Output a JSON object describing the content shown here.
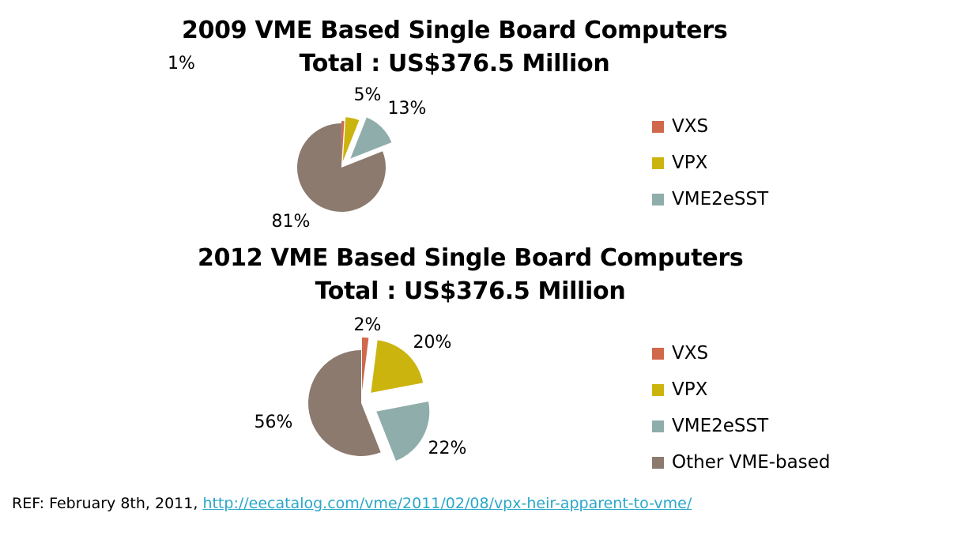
{
  "chart_data": [
    {
      "type": "pie",
      "title": "2009 VME Based Single Board Computers",
      "subtitle": "Total : US$376.5 Million",
      "categories": [
        "VXS",
        "VPX",
        "VME2eSST",
        "Other VME-based"
      ],
      "values": [
        1,
        5,
        13,
        81
      ],
      "labels": [
        "1%",
        "5%",
        "13%",
        "81%"
      ],
      "colors": [
        "#d0694c",
        "#ccb40f",
        "#8fadab",
        "#8c7a6f"
      ],
      "legend": [
        "VXS",
        "VPX",
        "VME2eSST"
      ],
      "legend_position": "right",
      "exploded": true
    },
    {
      "type": "pie",
      "title": "2012 VME Based Single Board Computers",
      "subtitle": "Total : US$376.5 Million",
      "categories": [
        "VXS",
        "VPX",
        "VME2eSST",
        "Other VME-based"
      ],
      "values": [
        2,
        20,
        22,
        56
      ],
      "labels": [
        "2%",
        "20%",
        "22%",
        "56%"
      ],
      "colors": [
        "#d0694c",
        "#ccb40f",
        "#8fadab",
        "#8c7a6f"
      ],
      "legend": [
        "VXS",
        "VPX",
        "VME2eSST",
        "Other VME-based"
      ],
      "legend_position": "right",
      "exploded": true
    }
  ],
  "reference": {
    "prefix": "REF: February 8th, 2011, ",
    "link": "http://eecatalog.com/vme/2011/02/08/vpx-heir-apparent-to-vme/"
  }
}
